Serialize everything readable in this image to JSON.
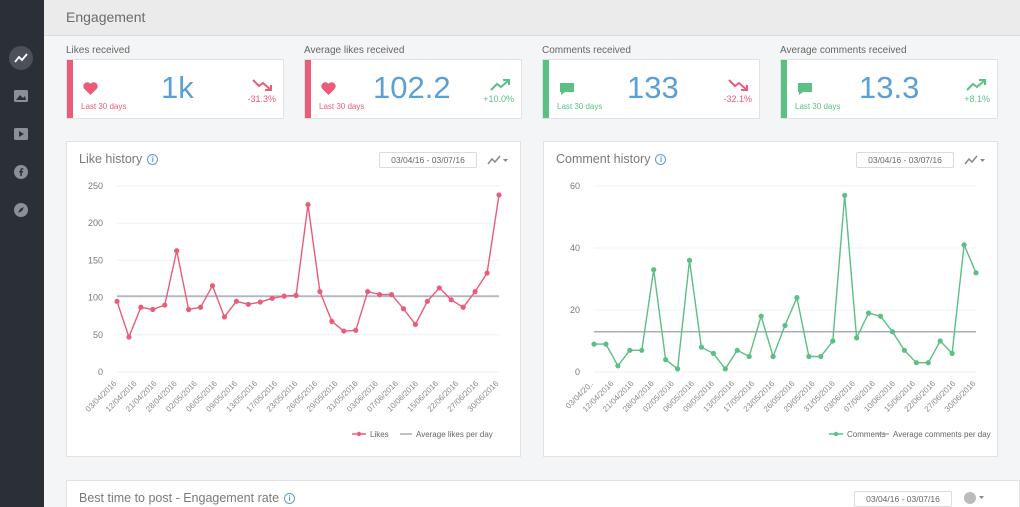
{
  "page": {
    "title": "Engagement"
  },
  "colors": {
    "accent": "#5a9fd6",
    "likes": "#ea5c7a",
    "comments": "#5cbf84",
    "negative": "#ea5c7a",
    "positive": "#5cbf84"
  },
  "sidebar": {
    "icons": [
      "trend-icon",
      "image-icon",
      "video-icon",
      "facebook-icon",
      "compass-icon"
    ]
  },
  "stats": [
    {
      "label": "Likes received",
      "period": "Last 30 days",
      "value": "1k",
      "change": "-31.3%",
      "direction": "down"
    },
    {
      "label": "Average likes received",
      "period": "Last 30 days",
      "value": "102.2",
      "change": "+10.0%",
      "direction": "up"
    },
    {
      "label": "Comments received",
      "period": "Last 30 days",
      "value": "133",
      "change": "-32.1%",
      "direction": "down"
    },
    {
      "label": "Average comments received",
      "period": "Last 30 days",
      "value": "13.3",
      "change": "+8.1%",
      "direction": "up"
    }
  ],
  "like_panel": {
    "title": "Like history",
    "date_range": "03/04/16 - 03/07/16"
  },
  "comment_panel": {
    "title": "Comment history",
    "date_range": "03/04/16 - 03/07/16"
  },
  "bottom_panel": {
    "title": "Best time to post - Engagement rate",
    "date_range": "03/04/16 - 03/07/16"
  },
  "chart_data": [
    {
      "type": "line",
      "title": "Like history",
      "ylim": [
        0,
        250
      ],
      "yticks": [
        0,
        50,
        100,
        150,
        200,
        250
      ],
      "x_tick_labels": [
        "03/04/2016",
        "12/04/2016",
        "21/04/2016",
        "28/04/2016",
        "02/05/2016",
        "06/05/2016",
        "09/05/2016",
        "13/05/2016",
        "17/05/2016",
        "23/05/2016",
        "26/05/2016",
        "29/05/2016",
        "31/05/2016",
        "03/06/2016",
        "07/06/2016",
        "10/06/2016",
        "15/06/2016",
        "22/06/2016",
        "27/06/2016",
        "30/06/2016"
      ],
      "series": [
        {
          "name": "Likes",
          "values": [
            95,
            47,
            87,
            84,
            90,
            163,
            84,
            87,
            116,
            74,
            95,
            91,
            94,
            99,
            102,
            103,
            225,
            108,
            68,
            55,
            56,
            108,
            104,
            104,
            85,
            64,
            95,
            113,
            97,
            87,
            108,
            133,
            238
          ]
        },
        {
          "name": "Average likes per day",
          "values": [
            102,
            102
          ]
        }
      ],
      "legend": [
        "Likes",
        "Average likes per day"
      ]
    },
    {
      "type": "line",
      "title": "Comment history",
      "ylim": [
        0,
        60
      ],
      "yticks": [
        0,
        20,
        40,
        60
      ],
      "x_tick_labels": [
        "03/04/20..",
        "12/04/2016",
        "21/04/2016",
        "28/04/2016",
        "02/05/2016",
        "06/05/2016",
        "09/05/2016",
        "13/05/2016",
        "17/05/2016",
        "23/05/2016",
        "26/05/2016",
        "29/05/2016",
        "31/05/2016",
        "03/06/2016",
        "07/06/2016",
        "10/06/2016",
        "15/06/2016",
        "22/06/2016",
        "27/06/2016",
        "30/06/2016"
      ],
      "series": [
        {
          "name": "Comments",
          "values": [
            9,
            9,
            2,
            7,
            7,
            33,
            4,
            1,
            36,
            8,
            6,
            1,
            7,
            5,
            18,
            5,
            15,
            24,
            5,
            5,
            10,
            57,
            11,
            19,
            18,
            13,
            7,
            3,
            3,
            10,
            6,
            41,
            32
          ]
        },
        {
          "name": "Average comments per day",
          "values": [
            13,
            13
          ]
        }
      ],
      "legend": [
        "Comments",
        "Average comments per day"
      ]
    }
  ]
}
